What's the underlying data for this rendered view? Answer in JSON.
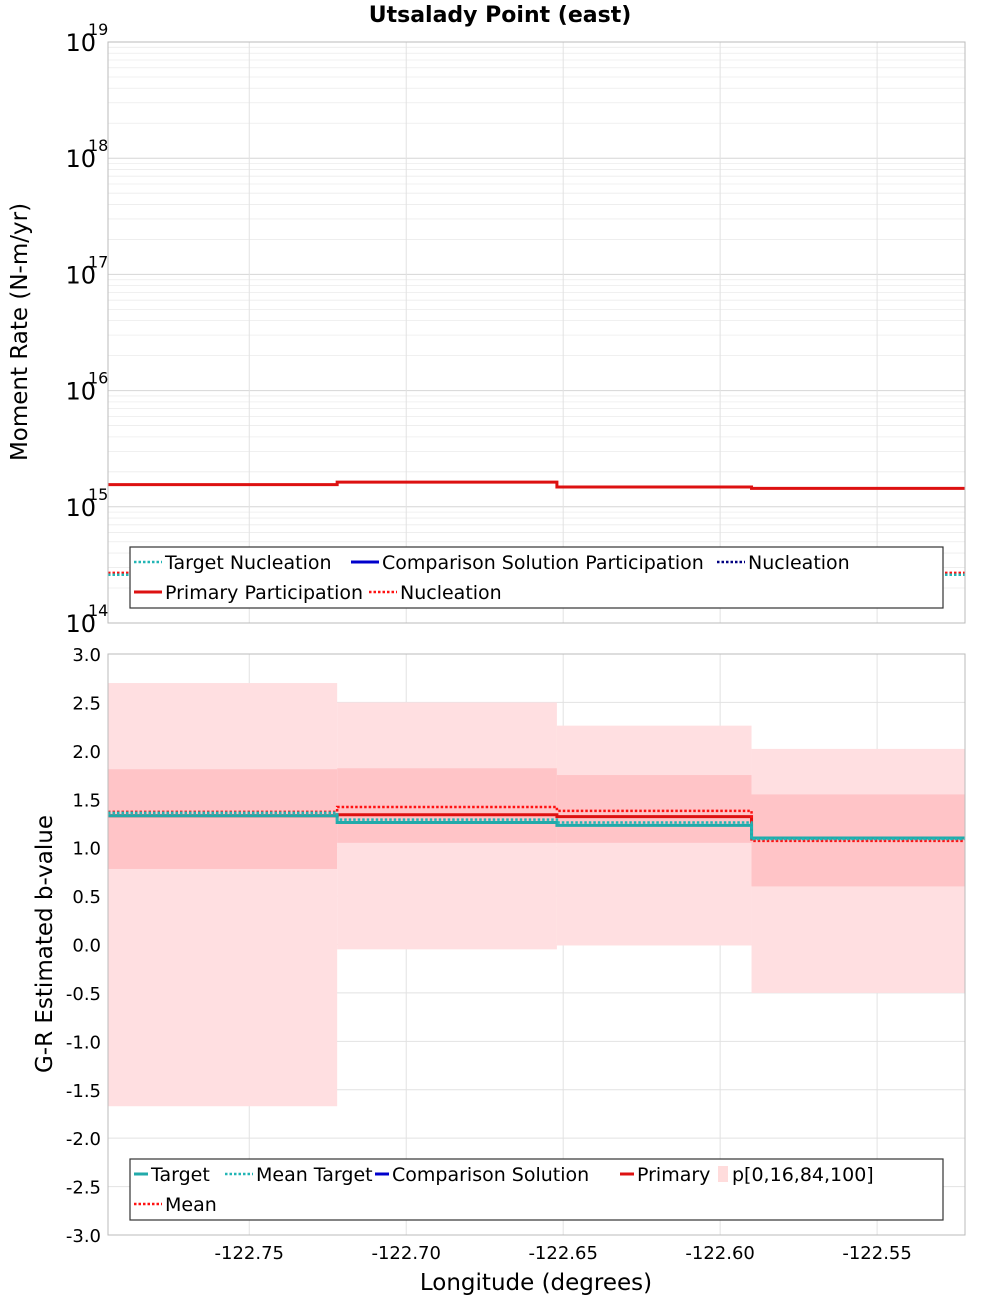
{
  "chart_data": [
    {
      "type": "line",
      "title": "Utsalady Point (east)",
      "xlabel": "",
      "ylabel": "Moment Rate (N-m/yr)",
      "yscale": "log",
      "xlim": [
        -122.795,
        -122.522
      ],
      "ylim": [
        100000000000000.0,
        1e+19
      ],
      "y_tick_labels": [
        "10",
        "10",
        "10",
        "10",
        "10",
        "10"
      ],
      "y_tick_exponents": [
        "14",
        "15",
        "16",
        "17",
        "18",
        "19"
      ],
      "y_tick_values": [
        100000000000000.0,
        1000000000000000.0,
        1e+16,
        1e+17,
        1e+18,
        1e+19
      ],
      "grid": true,
      "legend_position": "bottom",
      "legend": [
        {
          "label": "Target Nucleation",
          "color": "#22b5b5",
          "style": "dotted"
        },
        {
          "label": "Comparison Solution Participation",
          "color": "#0000cc",
          "style": "solid"
        },
        {
          "label": "Nucleation",
          "color": "#000080",
          "style": "dotted"
        },
        {
          "label": "Primary Participation",
          "color": "#dd1111",
          "style": "solid"
        },
        {
          "label": "Nucleation",
          "color": "#ff1111",
          "style": "dotted"
        }
      ],
      "bin_edges": [
        -122.795,
        -122.722,
        -122.652,
        -122.59,
        -122.522
      ],
      "series": [
        {
          "name": "Primary Participation",
          "color": "#dd1111",
          "style": "solid",
          "values": [
            1550000000000000.0,
            1630000000000000.0,
            1480000000000000.0,
            1440000000000000.0
          ]
        },
        {
          "name": "Nucleation",
          "color": "#ff1111",
          "style": "dotted",
          "values": [
            270000000000000.0,
            270000000000000.0,
            270000000000000.0,
            270000000000000.0
          ]
        },
        {
          "name": "Target Nucleation",
          "color": "#22b5b5",
          "style": "dotted",
          "values": [
            260000000000000.0,
            260000000000000.0,
            260000000000000.0,
            260000000000000.0
          ]
        }
      ]
    },
    {
      "type": "line",
      "title": "",
      "xlabel": "Longitude (degrees)",
      "ylabel": "G-R Estimated b-value",
      "xlim": [
        -122.795,
        -122.522
      ],
      "ylim": [
        -3.0,
        3.0
      ],
      "x_ticks": [
        -122.75,
        -122.7,
        -122.65,
        -122.6,
        -122.55
      ],
      "x_tick_labels": [
        "-122.75",
        "-122.70",
        "-122.65",
        "-122.60",
        "-122.55"
      ],
      "y_ticks": [
        3.0,
        2.5,
        2.0,
        1.5,
        1.0,
        0.5,
        0.0,
        -0.5,
        -1.0,
        -1.5,
        -2.0,
        -2.5,
        -3.0
      ],
      "y_tick_labels": [
        "3.0",
        "2.5",
        "2.0",
        "1.5",
        "1.0",
        "0.5",
        "0.0",
        "-0.5",
        "-1.0",
        "-1.5",
        "-2.0",
        "-2.5",
        "-3.0"
      ],
      "grid": true,
      "legend_position": "bottom",
      "legend": [
        {
          "label": "Target",
          "color": "#22aaaa",
          "style": "solid"
        },
        {
          "label": "Mean Target",
          "color": "#22b5b5",
          "style": "dotted"
        },
        {
          "label": "Comparison Solution",
          "color": "#0000cc",
          "style": "solid"
        },
        {
          "label": "Primary",
          "color": "#dd1111",
          "style": "solid"
        },
        {
          "label": "p[0,16,84,100]",
          "color": "#ffdcdc",
          "style": "box"
        },
        {
          "label": "Mean",
          "color": "#ff1111",
          "style": "dotted"
        }
      ],
      "bin_edges": [
        -122.795,
        -122.722,
        -122.652,
        -122.59,
        -122.522
      ],
      "bands": {
        "p0": [
          -1.67,
          -0.05,
          -0.01,
          -0.5
        ],
        "p16": [
          0.78,
          1.05,
          1.05,
          0.6
        ],
        "p84": [
          1.81,
          1.82,
          1.75,
          1.55
        ],
        "p100": [
          2.7,
          2.5,
          2.26,
          2.02
        ]
      },
      "series": [
        {
          "name": "Primary",
          "color": "#dd1111",
          "style": "solid",
          "values": [
            1.33,
            1.34,
            1.32,
            1.1
          ]
        },
        {
          "name": "Mean",
          "color": "#ff1111",
          "style": "dotted",
          "values": [
            1.37,
            1.42,
            1.38,
            1.07
          ]
        },
        {
          "name": "Target",
          "color": "#22aaaa",
          "style": "solid",
          "values": [
            1.33,
            1.26,
            1.23,
            1.1
          ]
        },
        {
          "name": "Mean Target",
          "color": "#22b5b5",
          "style": "dotted",
          "values": [
            1.36,
            1.29,
            1.26,
            1.09
          ]
        }
      ]
    }
  ]
}
